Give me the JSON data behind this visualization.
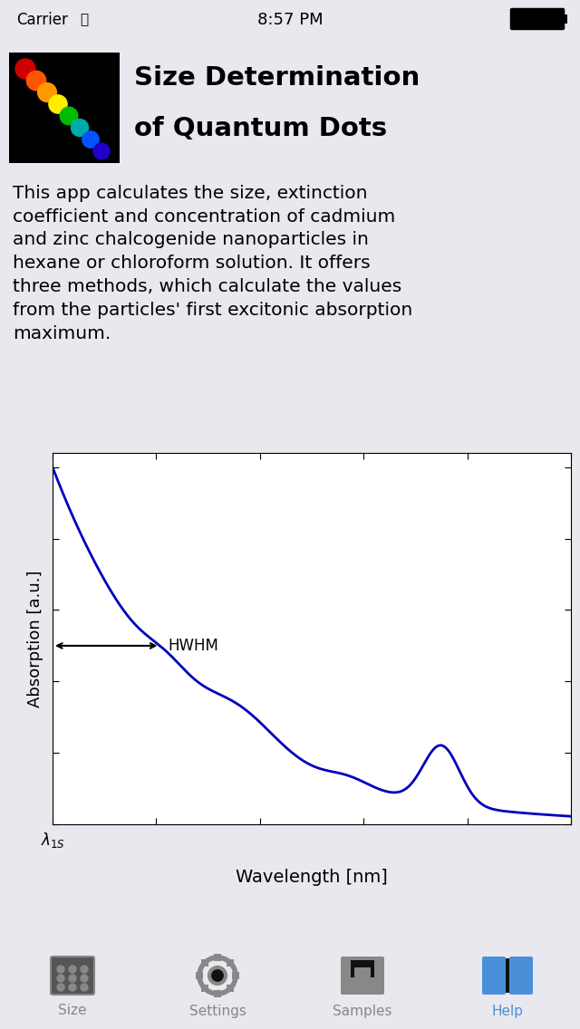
{
  "bg_color": "#e8e8ee",
  "white_bg": "#ffffff",
  "black_bg": "#111111",
  "title_line1": "Size Determination",
  "title_line2": "of Quantum Dots",
  "body_text": "This app calculates the size, extinction\ncoefficient and concentration of cadmium\nand zinc chalcogenide nanoparticles in\nhexane or chloroform solution. It offers\nthree methods, which calculate the values\nfrom the particles' first excitonic absorption\nmaximum.",
  "xlabel": "Wavelength [nm]",
  "ylabel": "Absorption [a.u.]",
  "hwhm_label": "HWHM",
  "curve_color": "#0000bb",
  "tab_bg": "#1a1a1a",
  "tab_labels": [
    "Size",
    "Settings",
    "Samples",
    "Help"
  ],
  "tab_active": 3,
  "tab_active_color": "#4a90d9",
  "tab_inactive_color": "#888888",
  "status_text": "8:57 PM",
  "status_carrier": "Carrier"
}
